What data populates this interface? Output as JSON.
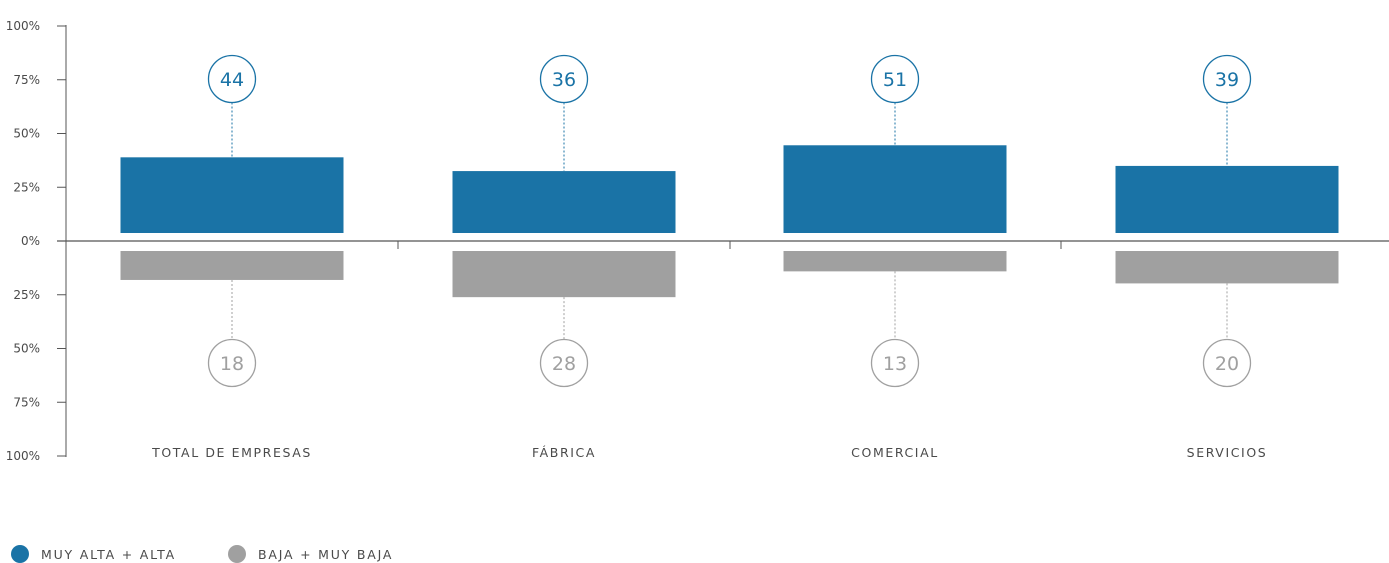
{
  "chart_data": {
    "type": "bar",
    "categories": [
      "TOTAL DE EMPRESAS",
      "FÁBRICA",
      "COMERCIAL",
      "SERVICIOS"
    ],
    "series": [
      {
        "name": "MUY ALTA + ALTA",
        "values": [
          44,
          36,
          51,
          39
        ],
        "color": "#1a73a6"
      },
      {
        "name": "BAJA + MUY BAJA",
        "values": [
          18,
          28,
          13,
          20
        ],
        "color": "#a0a0a0"
      }
    ],
    "y_ticks_up": [
      "0%",
      "25%",
      "50%",
      "75%",
      "100%"
    ],
    "y_ticks_down": [
      "25%",
      "50%",
      "75%",
      "100%"
    ],
    "ylim": [
      -100,
      100
    ],
    "grid": false,
    "legend_position": "bottom-left"
  }
}
